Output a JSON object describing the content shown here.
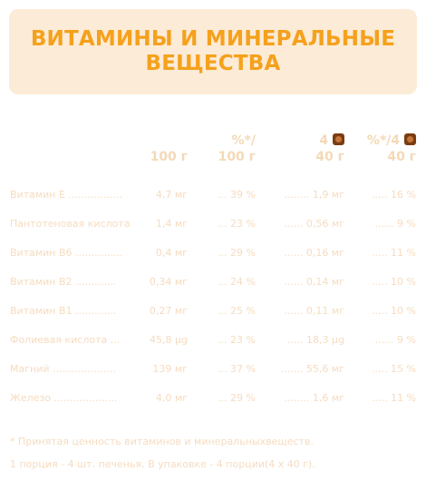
{
  "header": {
    "title_line1": "ВИТАМИНЫ И МИНЕРАЛЬНЫЕ",
    "title_line2": "ВЕЩЕСТВА"
  },
  "columns": {
    "per100": "100 г",
    "pct_top": "%*/",
    "pct_bottom": "100 г",
    "portion_top": "4",
    "portion_bottom": "40 г",
    "portion_pct_top": "%*/4",
    "portion_pct_bottom": "40 г",
    "icon": "cookie-icon"
  },
  "rows": [
    {
      "name": "Витамин Е .................",
      "value": "4,7 мг",
      "pct": "... 39 %",
      "portion": "........ 1,9 мг",
      "portion_pct": "..... 16 %"
    },
    {
      "name": "Пантотеновая кислота",
      "value": "1,4 мг",
      "pct": "... 23 %",
      "portion": "...... 0,56 мг",
      "portion_pct": "...... 9 %"
    },
    {
      "name": "Витамин В6 ...............",
      "value": "0,4 мг",
      "pct": "... 29 %",
      "portion": "...... 0,16 мг",
      "portion_pct": "..... 11 %"
    },
    {
      "name": "Витамин В2 .............",
      "value": "0,34 мг",
      "pct": "... 24 %",
      "portion": "...... 0,14 мг",
      "portion_pct": "..... 10 %"
    },
    {
      "name": "Витамин В1 .............",
      "value": "0,27 мг",
      "pct": "... 25 %",
      "portion": "...... 0,11 мг",
      "portion_pct": "..... 10 %"
    },
    {
      "name": "Фолиевая кислота ...",
      "value": "45,8 μg",
      "pct": "... 23 %",
      "portion": "..... 18,3 μg",
      "portion_pct": "...... 9 %"
    },
    {
      "name": "Магний ....................",
      "value": "139 мг",
      "pct": "... 37 %",
      "portion": "....... 55,6 мг",
      "portion_pct": "..... 15 %"
    },
    {
      "name": "Железо ....................",
      "value": "4,0 мг",
      "pct": "... 29 %",
      "portion": "........ 1,6 мг",
      "portion_pct": "..... 11 %"
    }
  ],
  "footnotes": {
    "line1": "* Принятая ценность витаминов и минеральныхвеществ.",
    "line2": "1 порция - 4   шт. печенья. В упаковке - 4   порции(4 х 40  г)."
  }
}
